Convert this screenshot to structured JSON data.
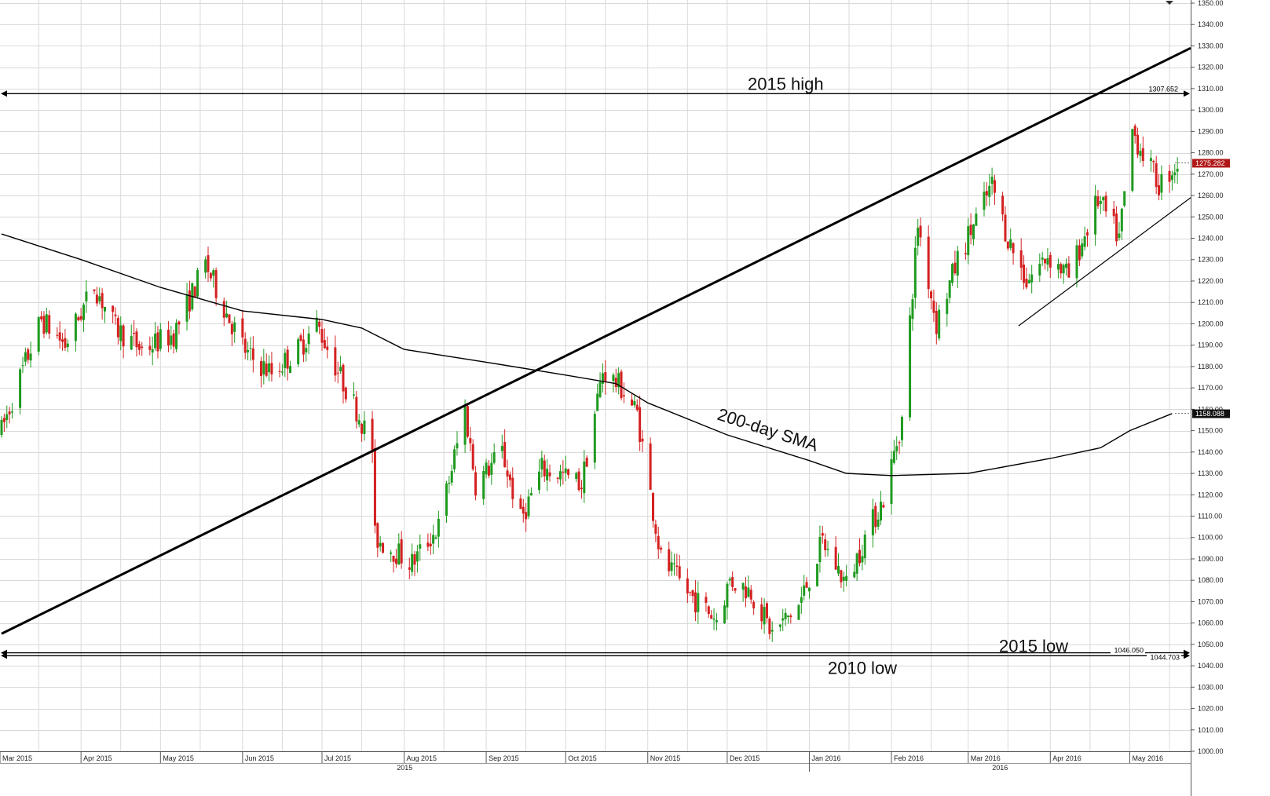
{
  "chart_data": {
    "type": "candlestick",
    "title": "",
    "xlabel": "",
    "ylabel": "",
    "ylim": [
      1000,
      1350
    ],
    "y_ticks": [
      1000,
      1010,
      1020,
      1030,
      1040,
      1050,
      1060,
      1070,
      1080,
      1090,
      1100,
      1110,
      1120,
      1130,
      1140,
      1150,
      1160,
      1170,
      1180,
      1190,
      1200,
      1210,
      1220,
      1230,
      1240,
      1250,
      1260,
      1270,
      1280,
      1290,
      1300,
      1310,
      1320,
      1330,
      1340,
      1350
    ],
    "y_tick_labels": [
      "1000.00",
      "1010.00",
      "1020.00",
      "1030.00",
      "1040.00",
      "1050.00",
      "1060.00",
      "1070.00",
      "1080.00",
      "1090.00",
      "1100.00",
      "1110.00",
      "1120.00",
      "1130.00",
      "1140.00",
      "1150.00",
      "1160.00",
      "1170.00",
      "1180.00",
      "1190.00",
      "1200.00",
      "1210.00",
      "1220.00",
      "1230.00",
      "1240.00",
      "1250.00",
      "1260.00",
      "1270.00",
      "1280.00",
      "1290.00",
      "1300.00",
      "1310.00",
      "1320.00",
      "1330.00",
      "1340.00",
      "1350.00"
    ],
    "months": [
      "Mar 2015",
      "Apr 2015",
      "May 2015",
      "Jun 2015",
      "Jul 2015",
      "Aug 2015",
      "Sep 2015",
      "Oct 2015",
      "Nov 2015",
      "Dec 2015",
      "Jan 2016",
      "Feb 2016",
      "Mar 2016",
      "Apr 2016",
      "May 2016"
    ],
    "years": [
      "2015",
      "2016"
    ],
    "grid": true,
    "colors": {
      "up": "#1f9a1f",
      "down": "#d42020",
      "line": "#000000",
      "last_price_bg": "#b01818",
      "sma_tag_bg": "#111111"
    },
    "horizontal_levels": [
      {
        "name": "2015 high",
        "value": 1307.652,
        "label": "1307.652"
      },
      {
        "name": "2015 low",
        "value": 1046.05,
        "label": "1046.050"
      },
      {
        "name": "2010 low",
        "value": 1044.703,
        "label": "1044.703"
      }
    ],
    "last_price": {
      "value": 1275.282,
      "label": "1275.282"
    },
    "sma_200": {
      "name": "200-day SMA",
      "last_value": 1158.088,
      "last_label": "1158.088",
      "points": [
        [
          "2015-03-02",
          1242
        ],
        [
          "2015-04-01",
          1230
        ],
        [
          "2015-05-01",
          1217
        ],
        [
          "2015-06-01",
          1206
        ],
        [
          "2015-07-01",
          1202
        ],
        [
          "2015-07-16",
          1198
        ],
        [
          "2015-08-01",
          1188
        ],
        [
          "2015-09-01",
          1182
        ],
        [
          "2015-10-01",
          1176
        ],
        [
          "2015-10-20",
          1172
        ],
        [
          "2015-11-01",
          1163
        ],
        [
          "2015-12-01",
          1148
        ],
        [
          "2016-01-01",
          1136
        ],
        [
          "2016-01-15",
          1130
        ],
        [
          "2016-02-01",
          1129
        ],
        [
          "2016-03-01",
          1130
        ],
        [
          "2016-04-01",
          1137
        ],
        [
          "2016-04-20",
          1142
        ],
        [
          "2016-05-01",
          1150
        ],
        [
          "2016-05-17",
          1158
        ]
      ]
    },
    "trendlines": [
      {
        "name": "rising-resistance",
        "from": [
          "2015-03-02",
          1055
        ],
        "to": [
          "2016-05-24",
          1329
        ]
      },
      {
        "name": "rising-support",
        "from": [
          "2016-03-20",
          1199
        ],
        "to": [
          "2016-05-24",
          1259
        ]
      }
    ],
    "annotations": [
      {
        "text": "2015 high"
      },
      {
        "text": "200-day SMA"
      },
      {
        "text": "2015 low"
      },
      {
        "text": "2010 low"
      }
    ],
    "anchors": [
      [
        "2015-03-02",
        1150
      ],
      [
        "2015-03-09",
        1175
      ],
      [
        "2015-03-17",
        1202
      ],
      [
        "2015-03-26",
        1190
      ],
      [
        "2015-04-06",
        1218
      ],
      [
        "2015-04-14",
        1198
      ],
      [
        "2015-04-24",
        1188
      ],
      [
        "2015-05-06",
        1195
      ],
      [
        "2015-05-18",
        1228
      ],
      [
        "2015-05-26",
        1205
      ],
      [
        "2015-06-03",
        1185
      ],
      [
        "2015-06-12",
        1177
      ],
      [
        "2015-06-22",
        1188
      ],
      [
        "2015-06-29",
        1200
      ],
      [
        "2015-07-08",
        1175
      ],
      [
        "2015-07-14",
        1160
      ],
      [
        "2015-07-20",
        1142
      ],
      [
        "2015-07-21",
        1100
      ],
      [
        "2015-08-04",
        1088
      ],
      [
        "2015-08-14",
        1105
      ],
      [
        "2015-08-24",
        1160
      ],
      [
        "2015-08-28",
        1125
      ],
      [
        "2015-09-07",
        1140
      ],
      [
        "2015-09-14",
        1108
      ],
      [
        "2015-09-22",
        1132
      ],
      [
        "2015-09-28",
        1130
      ],
      [
        "2015-10-07",
        1125
      ],
      [
        "2015-10-15",
        1178
      ],
      [
        "2015-10-22",
        1170
      ],
      [
        "2015-10-28",
        1158
      ],
      [
        "2015-11-06",
        1090
      ],
      [
        "2015-11-17",
        1073
      ],
      [
        "2015-11-27",
        1062
      ],
      [
        "2015-12-02",
        1080
      ],
      [
        "2015-12-10",
        1075
      ],
      [
        "2015-12-18",
        1055
      ],
      [
        "2015-12-28",
        1068
      ],
      [
        "2016-01-06",
        1098
      ],
      [
        "2016-01-15",
        1078
      ],
      [
        "2016-01-22",
        1100
      ],
      [
        "2016-01-29",
        1118
      ],
      [
        "2016-02-05",
        1155
      ],
      [
        "2016-02-11",
        1247
      ],
      [
        "2016-02-18",
        1200
      ],
      [
        "2016-02-26",
        1230
      ],
      [
        "2016-03-10",
        1265
      ],
      [
        "2016-03-16",
        1240
      ],
      [
        "2016-03-23",
        1220
      ],
      [
        "2016-03-31",
        1232
      ],
      [
        "2016-04-08",
        1222
      ],
      [
        "2016-04-19",
        1258
      ],
      [
        "2016-04-27",
        1240
      ],
      [
        "2016-05-02",
        1290
      ],
      [
        "2016-05-12",
        1265
      ],
      [
        "2016-05-19",
        1275
      ]
    ]
  }
}
